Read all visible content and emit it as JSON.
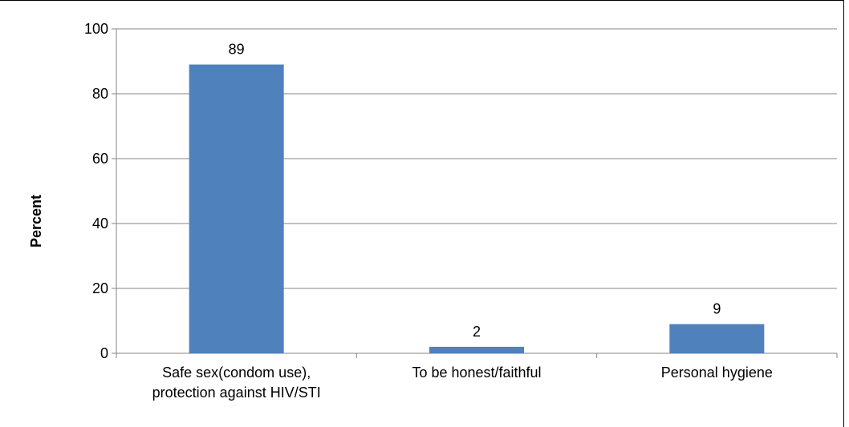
{
  "chart_data": {
    "type": "bar",
    "title": "",
    "xlabel": "",
    "ylabel": "Percent",
    "ylim": [
      0,
      100
    ],
    "yticks": [
      0,
      20,
      40,
      60,
      80,
      100
    ],
    "grid": true,
    "legend": "none",
    "bar_color": "#4f81bd",
    "categories": [
      [
        "Safe sex(condom use),",
        "protection against HIV/STI"
      ],
      [
        "To be honest/faithful"
      ],
      [
        "Personal hygiene"
      ]
    ],
    "values": [
      89,
      2,
      9
    ],
    "data_labels": [
      "89",
      "2",
      "9"
    ]
  }
}
